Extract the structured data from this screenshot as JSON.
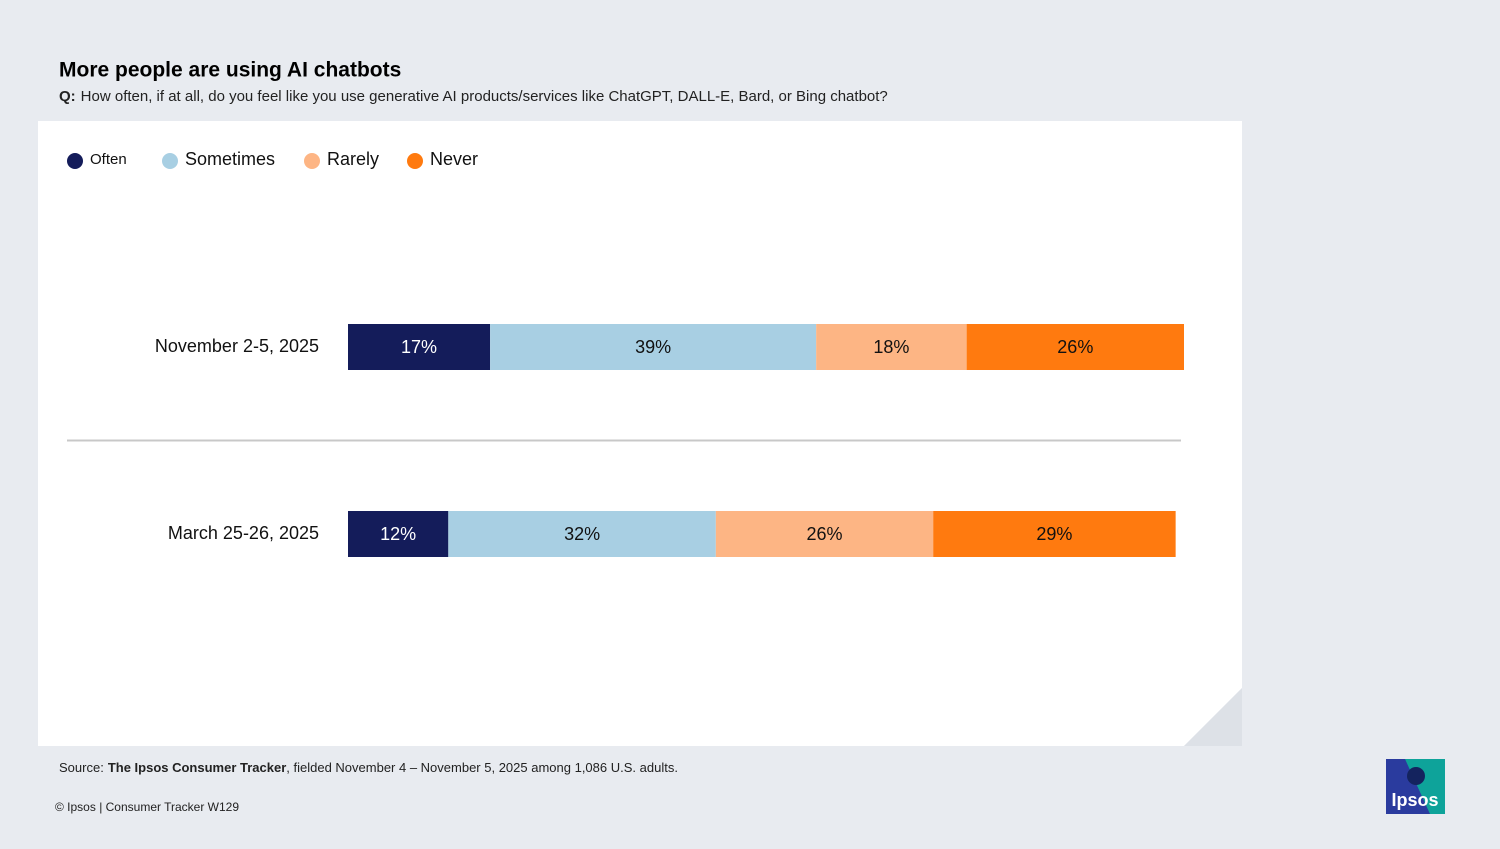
{
  "chart_data": {
    "type": "stacked-bar",
    "title": "More people are using AI chatbots",
    "subtitle_label": "Q:",
    "subtitle": "How often, if at all, do you feel like you use generative AI products/services like ChatGPT, DALL-E, Bard, or Bing chatbot?",
    "categories": [
      "November 2-5, 2025",
      "March 25-26, 2025"
    ],
    "xlim": [
      0,
      100
    ],
    "series": [
      {
        "name": "Often",
        "color": "#141c5a",
        "values": [
          17,
          12
        ],
        "value_labels": [
          "17%",
          "12%"
        ]
      },
      {
        "name": "Sometimes",
        "color": "#a8cfe3",
        "values": [
          39,
          32
        ],
        "value_labels": [
          "39%",
          "32%"
        ]
      },
      {
        "name": "Rarely",
        "color": "#fdb584",
        "values": [
          18,
          26
        ],
        "value_labels": [
          "18%",
          "26%"
        ]
      },
      {
        "name": "Never",
        "color": "#ff7a0f",
        "values": [
          26,
          29
        ],
        "value_labels": [
          "26%",
          "29%"
        ]
      }
    ],
    "legend": "top-left"
  },
  "source": {
    "label": "Source:",
    "name": "The Ipsos Consumer Tracker",
    "text": ", fielded November 4 – November 5, 2025 among 1,086 U.S. adults."
  },
  "footer": "© Ipsos | Consumer Tracker W129",
  "logo": "Ipsos"
}
